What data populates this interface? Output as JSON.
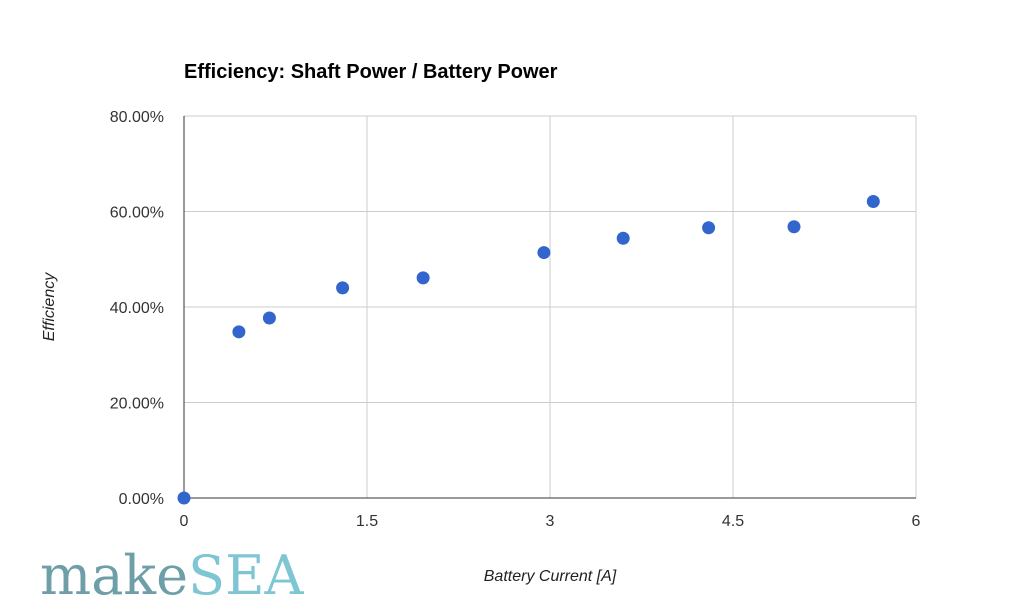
{
  "chart_data": {
    "type": "scatter",
    "title": "Efficiency: Shaft Power / Battery Power",
    "xlabel": "Battery Current [A]",
    "ylabel": "Efficiency",
    "xlim": [
      0,
      6
    ],
    "ylim": [
      0,
      0.8
    ],
    "x_ticks": [
      "0",
      "1.5",
      "3",
      "4.5",
      "6"
    ],
    "y_ticks": [
      "0.00%",
      "20.00%",
      "40.00%",
      "60.00%",
      "80.00%"
    ],
    "grid": true,
    "legend": "none",
    "point_color": "#3366cc",
    "series": [
      {
        "x": [
          0,
          0.45,
          0.7,
          1.3,
          1.96,
          2.95,
          3.6,
          4.3,
          5.0,
          5.65
        ],
        "y": [
          0.0,
          0.348,
          0.377,
          0.44,
          0.461,
          0.514,
          0.544,
          0.566,
          0.568,
          0.621
        ]
      }
    ]
  },
  "logo": {
    "text_make": "make",
    "text_sea": "SEA",
    "color_make": "#6e9fa8",
    "color_sea": "#7fc6d4"
  }
}
